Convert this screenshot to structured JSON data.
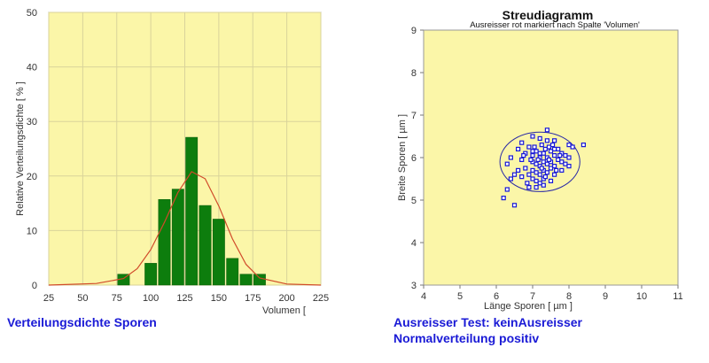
{
  "chart_data": [
    {
      "type": "bar",
      "title": "",
      "xlabel": "Volumen [",
      "ylabel": "Relative Verteilungsdichte [ % ]",
      "xlim": [
        25,
        225
      ],
      "ylim": [
        0,
        50
      ],
      "x_ticks": [
        "25",
        "50",
        "75",
        "100",
        "125",
        "150",
        "175",
        "200",
        "225"
      ],
      "y_ticks": [
        "0",
        "10",
        "20",
        "30",
        "40",
        "50"
      ],
      "bin_width": 10,
      "bins": [
        80,
        100,
        110,
        120,
        130,
        140,
        150,
        160,
        170,
        180
      ],
      "values": [
        2,
        4,
        15.7,
        17.6,
        27.1,
        14.6,
        12.1,
        4.9,
        2,
        2
      ],
      "curve_label": "",
      "curve": {
        "x": [
          25,
          60,
          80,
          90,
          100,
          110,
          120,
          130,
          140,
          150,
          160,
          170,
          180,
          200,
          225
        ],
        "y": [
          0,
          0.3,
          1.2,
          3,
          6.5,
          11.5,
          17,
          20.8,
          19.5,
          14.5,
          8.5,
          3.8,
          1.3,
          0.2,
          0
        ]
      },
      "bar_color": "#0d7d0d",
      "curve_color": "#d04a2a",
      "background": "#fbf6a8",
      "grid": true
    },
    {
      "type": "scatter",
      "title": "Streudiagramm",
      "subtitle": "Ausreisser rot markiert nach Spalte 'Volumen'",
      "xlabel": "Länge Sporen [ µm ]",
      "ylabel": "Breite Sporen [ µm ]",
      "xlim": [
        4,
        11
      ],
      "ylim": [
        3,
        9
      ],
      "x_ticks": [
        "4",
        "5",
        "6",
        "7",
        "8",
        "9",
        "10",
        "11"
      ],
      "y_ticks": [
        "3",
        "4",
        "5",
        "6",
        "7",
        "8",
        "9"
      ],
      "point_color": "#1a1ad6",
      "background": "#fbf6a8",
      "ellipse": {
        "cx": 7.2,
        "cy": 5.9,
        "rx": 1.1,
        "ry": 0.7
      },
      "points": [
        [
          6.2,
          5.05
        ],
        [
          6.5,
          4.88
        ],
        [
          6.7,
          5.55
        ],
        [
          6.9,
          5.3
        ],
        [
          6.5,
          5.6
        ],
        [
          6.3,
          5.85
        ],
        [
          6.4,
          6.0
        ],
        [
          6.6,
          6.2
        ],
        [
          6.7,
          6.35
        ],
        [
          6.9,
          6.25
        ],
        [
          7.0,
          6.5
        ],
        [
          7.2,
          6.45
        ],
        [
          7.4,
          6.4
        ],
        [
          7.6,
          6.4
        ],
        [
          7.4,
          6.65
        ],
        [
          6.8,
          6.1
        ],
        [
          7.0,
          6.05
        ],
        [
          7.1,
          6.15
        ],
        [
          7.2,
          6.0
        ],
        [
          7.3,
          6.1
        ],
        [
          7.4,
          6.0
        ],
        [
          7.5,
          6.15
        ],
        [
          7.6,
          6.05
        ],
        [
          7.7,
          6.2
        ],
        [
          7.8,
          6.1
        ],
        [
          7.9,
          6.05
        ],
        [
          8.0,
          6.3
        ],
        [
          8.1,
          6.25
        ],
        [
          8.4,
          6.3
        ],
        [
          7.0,
          5.9
        ],
        [
          7.1,
          5.85
        ],
        [
          7.2,
          5.8
        ],
        [
          7.3,
          5.9
        ],
        [
          7.4,
          5.85
        ],
        [
          7.5,
          5.9
        ],
        [
          7.6,
          5.8
        ],
        [
          7.7,
          5.95
        ],
        [
          7.8,
          5.9
        ],
        [
          7.0,
          5.7
        ],
        [
          7.1,
          5.65
        ],
        [
          7.2,
          5.6
        ],
        [
          7.3,
          5.7
        ],
        [
          7.4,
          5.65
        ],
        [
          7.5,
          5.75
        ],
        [
          6.9,
          5.6
        ],
        [
          7.0,
          5.5
        ],
        [
          7.1,
          5.45
        ],
        [
          7.2,
          5.4
        ],
        [
          7.3,
          5.5
        ],
        [
          6.8,
          5.75
        ],
        [
          6.7,
          5.95
        ],
        [
          6.6,
          5.7
        ],
        [
          6.4,
          5.5
        ],
        [
          6.3,
          5.25
        ],
        [
          7.5,
          5.45
        ],
        [
          7.6,
          5.6
        ],
        [
          7.8,
          5.7
        ],
        [
          7.9,
          5.85
        ],
        [
          8.0,
          6.0
        ],
        [
          8.0,
          5.8
        ],
        [
          7.25,
          6.3
        ],
        [
          7.35,
          6.2
        ],
        [
          7.05,
          6.25
        ],
        [
          6.95,
          5.95
        ],
        [
          7.15,
          5.95
        ],
        [
          7.45,
          6.25
        ],
        [
          7.55,
          6.3
        ],
        [
          7.65,
          5.7
        ],
        [
          7.1,
          5.3
        ],
        [
          7.3,
          5.35
        ],
        [
          6.85,
          5.4
        ],
        [
          7.75,
          6.05
        ],
        [
          7.2,
          6.1
        ],
        [
          7.35,
          5.55
        ],
        [
          7.25,
          5.75
        ],
        [
          6.75,
          6.05
        ],
        [
          7.45,
          5.95
        ],
        [
          7.6,
          6.2
        ],
        [
          7.0,
          6.15
        ]
      ]
    }
  ],
  "captions": {
    "left": "Verteilungsdichte Sporen",
    "right_line1": "Ausreisser Test: keinAusreisser",
    "right_line2": "Normalverteilung positiv"
  }
}
